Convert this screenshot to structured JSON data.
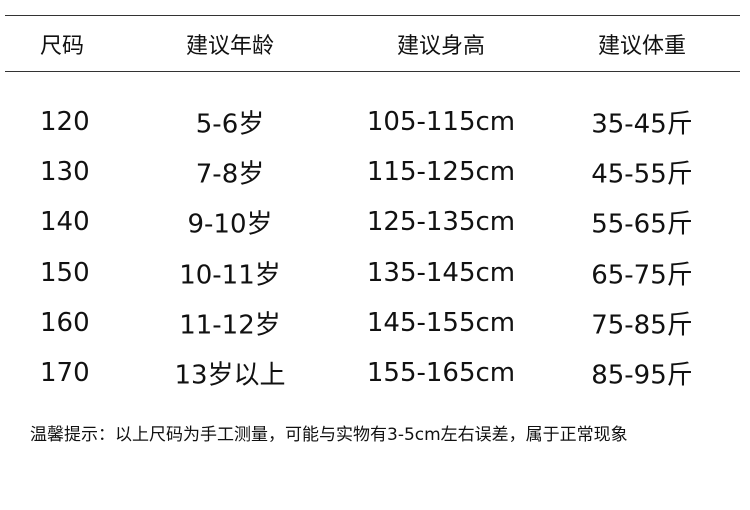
{
  "table": {
    "header": [
      "尺码",
      "建议年龄",
      "建议身高",
      "建议体重"
    ],
    "rows": [
      [
        "120",
        "5-6岁",
        "105-115cm",
        "35-45斤"
      ],
      [
        "130",
        "7-8岁",
        "115-125cm",
        "45-55斤"
      ],
      [
        "140",
        "9-10岁",
        "125-135cm",
        "55-65斤"
      ],
      [
        "150",
        "10-11岁",
        "135-145cm",
        "65-75斤"
      ],
      [
        "160",
        "11-12岁",
        "145-155cm",
        "75-85斤"
      ],
      [
        "170",
        "13岁以上",
        "155-165cm",
        "85-95斤"
      ]
    ]
  },
  "footnote": "温馨提示：以上尺码为手工测量，可能与实物有3-5cm左右误差，属于正常现象"
}
